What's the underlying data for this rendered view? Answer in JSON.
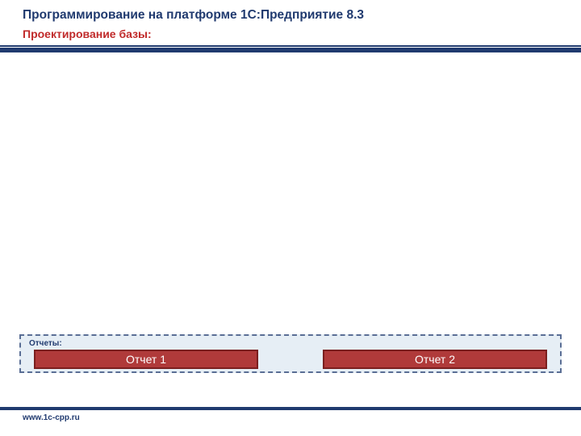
{
  "colors": {
    "title": "#203a6f",
    "subtitle": "#c02a2a",
    "rule": "#203a6f",
    "panel_bg": "#e6eef5",
    "panel_border": "#5a6e95",
    "panel_label": "#203a6f",
    "box_fill": "#b03a3a",
    "box_border": "#7a1f1f",
    "footer_text": "#203a6f"
  },
  "header": {
    "title": "Программирование на платформе 1С:Предприятие 8.3",
    "subtitle": "Проектирование базы:"
  },
  "reports": {
    "label": "Отчеты:",
    "items": [
      "Отчет 1",
      "Отчет 2"
    ]
  },
  "footer": {
    "url": "www.1c-cpp.ru"
  }
}
